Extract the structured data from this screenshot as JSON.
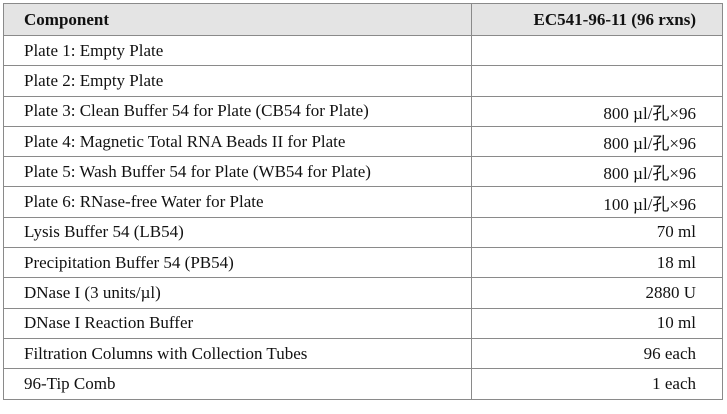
{
  "table": {
    "headers": [
      "Component",
      "EC541-96-11 (96 rxns)"
    ],
    "rows": [
      [
        "Plate 1: Empty Plate",
        ""
      ],
      [
        "Plate 2: Empty Plate",
        ""
      ],
      [
        "Plate 3: Clean Buffer 54 for Plate (CB54 for Plate)",
        "800 µl/孔×96"
      ],
      [
        "Plate 4: Magnetic Total RNA Beads II for Plate",
        "800 µl/孔×96"
      ],
      [
        "Plate 5: Wash Buffer 54 for Plate (WB54 for Plate)",
        "800 µl/孔×96"
      ],
      [
        "Plate 6: RNase-free Water for Plate",
        "100 µl/孔×96"
      ],
      [
        "Lysis Buffer 54 (LB54)",
        "70 ml"
      ],
      [
        "Precipitation Buffer 54 (PB54)",
        "18 ml"
      ],
      [
        "DNase I (3 units/µl)",
        "2880 U"
      ],
      [
        "DNase I Reaction Buffer",
        "10 ml"
      ],
      [
        "Filtration Columns with Collection Tubes",
        "96 each"
      ],
      [
        "96-Tip Comb",
        "1 each"
      ]
    ]
  }
}
